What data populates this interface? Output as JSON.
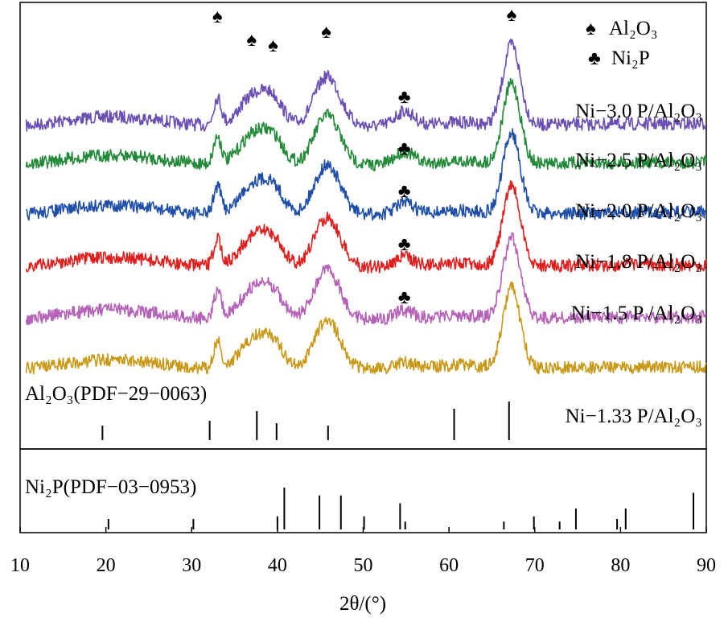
{
  "chart_data": {
    "type": "line",
    "xlabel": "2θ/(°)",
    "xlim": [
      10,
      90
    ],
    "x_ticks": [
      "10",
      "20",
      "30",
      "40",
      "50",
      "60",
      "70",
      "80",
      "90"
    ],
    "legend": [
      {
        "symbol": "♠",
        "label": "Al₂O₃"
      },
      {
        "symbol": "♣",
        "label": "Ni₂P"
      }
    ],
    "al2o3_peak_markers": [
      33.0,
      37.0,
      39.5,
      45.7,
      67.3
    ],
    "ni2p_peak_markers": [
      54.8
    ],
    "series": [
      {
        "name": "Ni−3.0 P/Al₂O₃",
        "color": "#6b4fb3",
        "ni2p_marker": true
      },
      {
        "name": "Ni−2.5 P/Al₂O₃",
        "color": "#238a3a",
        "ni2p_marker": true
      },
      {
        "name": "Ni−2.0 P/Al₂O₃",
        "color": "#1f4fa8",
        "ni2p_marker": true
      },
      {
        "name": "Ni−1.8 P/Al₂O₃",
        "color": "#e0201f",
        "ni2p_marker": true
      },
      {
        "name": "Ni−1.5 P /Al₂O₃",
        "color": "#b463b8",
        "ni2p_marker": true
      },
      {
        "name": "Ni−1.33 P/Al₂O₃",
        "color": "#c99a1a",
        "ni2p_marker": false
      }
    ],
    "reference_patterns": [
      {
        "name": "Al₂O₃(PDF−29−0063)",
        "lines": [
          {
            "x": 19.6,
            "intensity": 0.3
          },
          {
            "x": 32.1,
            "intensity": 0.4
          },
          {
            "x": 37.6,
            "intensity": 0.6
          },
          {
            "x": 39.9,
            "intensity": 0.35
          },
          {
            "x": 45.9,
            "intensity": 0.3
          },
          {
            "x": 60.6,
            "intensity": 0.65
          },
          {
            "x": 67.0,
            "intensity": 0.8
          }
        ]
      },
      {
        "name": "Ni₂P(PDF−03−0953)",
        "lines": [
          {
            "x": 20.3,
            "intensity": 0.2
          },
          {
            "x": 30.2,
            "intensity": 0.2
          },
          {
            "x": 40.0,
            "intensity": 0.25
          },
          {
            "x": 40.8,
            "intensity": 0.8
          },
          {
            "x": 44.9,
            "intensity": 0.65
          },
          {
            "x": 47.4,
            "intensity": 0.65
          },
          {
            "x": 50.1,
            "intensity": 0.25
          },
          {
            "x": 54.3,
            "intensity": 0.5
          },
          {
            "x": 54.9,
            "intensity": 0.15
          },
          {
            "x": 66.4,
            "intensity": 0.15
          },
          {
            "x": 69.9,
            "intensity": 0.25
          },
          {
            "x": 72.9,
            "intensity": 0.15
          },
          {
            "x": 74.8,
            "intensity": 0.4
          },
          {
            "x": 79.6,
            "intensity": 0.2
          },
          {
            "x": 80.6,
            "intensity": 0.4
          },
          {
            "x": 88.5,
            "intensity": 0.7
          }
        ]
      }
    ]
  }
}
